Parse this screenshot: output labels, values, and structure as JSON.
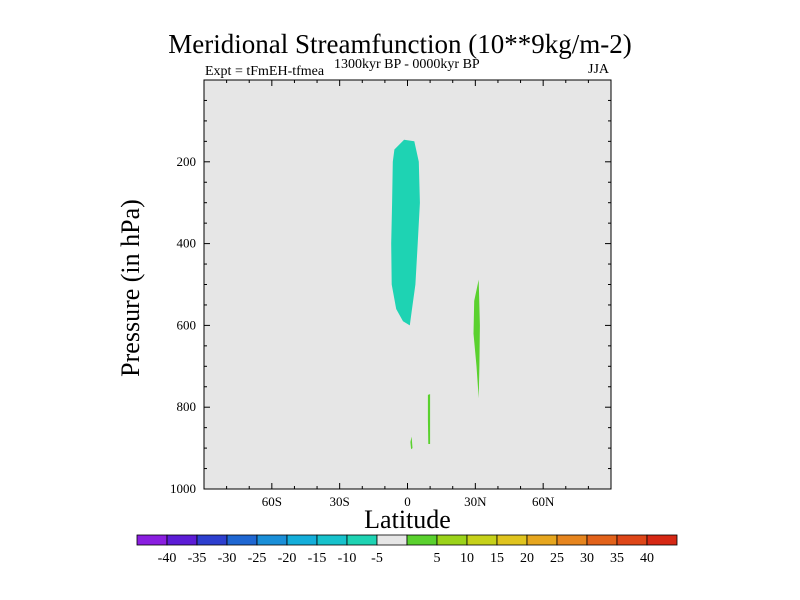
{
  "chart_data": {
    "type": "contour",
    "title": "Meridional Streamfunction (10**9kg/m-2)",
    "subtitle_left": "Expt = tFmEH-tfmea",
    "subtitle_center": "1300kyr BP - 0000kyr BP",
    "subtitle_right": "JJA",
    "xlabel": "Latitude",
    "ylabel": "Pressure (in hPa)",
    "xlim": [
      -90,
      90
    ],
    "ylim": [
      1000,
      0
    ],
    "x_ticks": [
      {
        "value": -60,
        "label": "60S"
      },
      {
        "value": -30,
        "label": "30S"
      },
      {
        "value": 0,
        "label": "0"
      },
      {
        "value": 30,
        "label": "30N"
      },
      {
        "value": 60,
        "label": "60N"
      }
    ],
    "y_ticks": [
      {
        "value": 200,
        "label": "200"
      },
      {
        "value": 400,
        "label": "400"
      },
      {
        "value": 600,
        "label": "600"
      },
      {
        "value": 800,
        "label": "800"
      },
      {
        "value": 1000,
        "label": "1000"
      }
    ],
    "background_color": "#e6e6e6",
    "contour_regions": [
      {
        "name": "negative-cell-equator",
        "range": "-10 to -5",
        "color": "#1ed3b3",
        "outline": [
          [
            -5.8,
            170
          ],
          [
            -1.5,
            146
          ],
          [
            3,
            150
          ],
          [
            5,
            200
          ],
          [
            5.5,
            300
          ],
          [
            4.5,
            400
          ],
          [
            3.5,
            500
          ],
          [
            2,
            560
          ],
          [
            1,
            600
          ],
          [
            -2,
            590
          ],
          [
            -5,
            560
          ],
          [
            -7,
            500
          ],
          [
            -7.2,
            400
          ],
          [
            -6.8,
            300
          ],
          [
            -6.5,
            200
          ]
        ]
      },
      {
        "name": "positive-cell-30n",
        "range": "5 to 10",
        "color": "#5ad12e",
        "outline": [
          [
            29.5,
            540
          ],
          [
            31.5,
            488
          ],
          [
            32,
            600
          ],
          [
            31.8,
            700
          ],
          [
            31.5,
            778
          ],
          [
            30.5,
            700
          ],
          [
            29.2,
            620
          ]
        ]
      },
      {
        "name": "positive-cell-10n",
        "range": "5 to 10",
        "color": "#5ad12e",
        "outline": [
          [
            9,
            770
          ],
          [
            10,
            768
          ],
          [
            10,
            890
          ],
          [
            9.2,
            890
          ],
          [
            9,
            830
          ]
        ]
      },
      {
        "name": "positive-spot-2n",
        "range": "5 to 10",
        "color": "#5ad12e",
        "outline": [
          [
            1.3,
            885
          ],
          [
            1.8,
            872
          ],
          [
            2.2,
            900
          ],
          [
            1.6,
            903
          ]
        ]
      }
    ],
    "colorbar": {
      "colors": [
        "#8a1ee0",
        "#5c1cd6",
        "#2d3fcf",
        "#1f67d2",
        "#1a8fd8",
        "#14aeda",
        "#17c2cc",
        "#1ed3b3",
        "#e6e6e6",
        "#5ad12e",
        "#9bd31a",
        "#c6d11a",
        "#e0c41e",
        "#e6a61e",
        "#e6851e",
        "#e2621a",
        "#de4618",
        "#d62814"
      ],
      "labels": [
        "-40",
        "-35",
        "-30",
        "-25",
        "-20",
        "-15",
        "-10",
        "-5",
        "5",
        "10",
        "15",
        "20",
        "25",
        "30",
        "35",
        "40"
      ]
    }
  }
}
